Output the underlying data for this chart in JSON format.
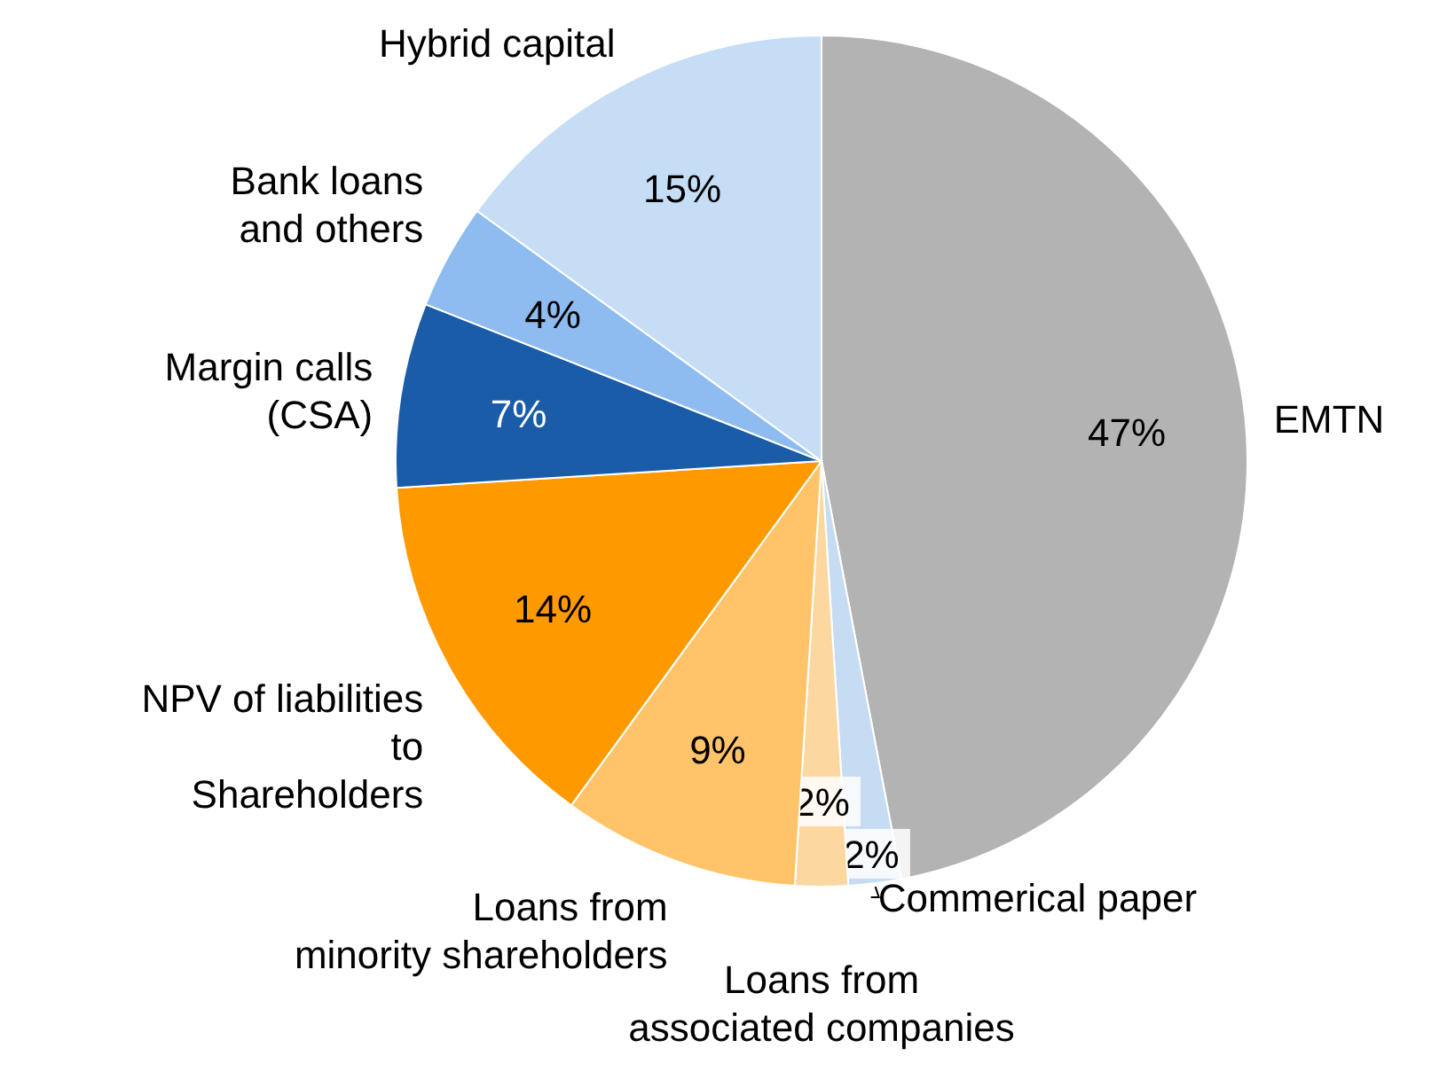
{
  "chart_data": {
    "type": "pie",
    "categories": [
      "EMTN",
      "Commerical paper",
      "Loans from\nassociated companies",
      "Loans from\nminority shareholders",
      "NPV of liabilities\nto\nShareholders",
      "Margin calls\n(CSA)",
      "Bank loans\nand others",
      "Hybrid capital"
    ],
    "values": [
      47,
      2,
      2,
      9,
      14,
      7,
      4,
      15
    ],
    "value_labels": [
      "47%",
      "2%",
      "2%",
      "9%",
      "14%",
      "7%",
      "4%",
      "15%"
    ],
    "colors": [
      "#b3b3b3",
      "#c6dcf2",
      "#fcd8a0",
      "#ffc469",
      "#ff9900",
      "#1a5ca8",
      "#8fbcf0",
      "#c5ddf5"
    ]
  }
}
